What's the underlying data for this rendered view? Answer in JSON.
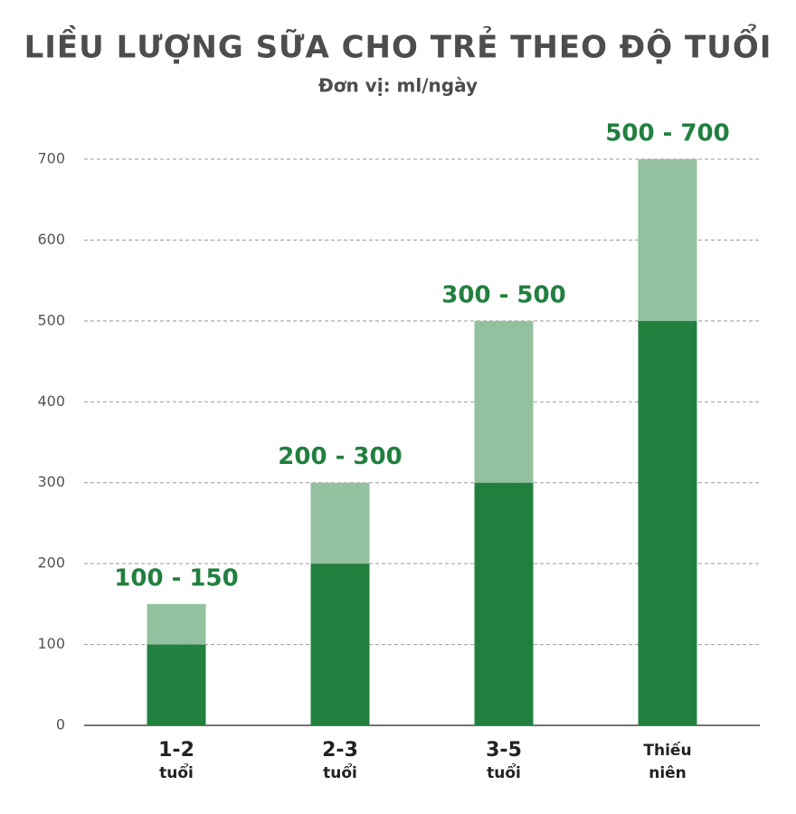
{
  "chart_data": {
    "type": "stacked_bar",
    "title": "LIỀU LƯỢNG SỮA CHO TRẺ THEO ĐỘ TUỔI",
    "subtitle": "Đơn vị: ml/ngày",
    "categories": [
      [
        "1-2",
        "tuổi"
      ],
      [
        "2-3",
        "tuổi"
      ],
      [
        "3-5",
        "tuổi"
      ],
      [
        "Thiếu",
        "niên"
      ]
    ],
    "series": [
      {
        "color": "#22803f",
        "values": [
          100,
          200,
          300,
          500
        ]
      },
      {
        "color": "#93c09f",
        "values": [
          50,
          100,
          200,
          200
        ]
      }
    ],
    "annotations": [
      "100 - 150",
      "200 - 300",
      "300 - 500",
      "500 - 700"
    ],
    "ylim": [
      0,
      700
    ],
    "yticks": [
      0,
      100,
      200,
      300,
      400,
      500,
      600,
      700
    ],
    "grid": true
  }
}
